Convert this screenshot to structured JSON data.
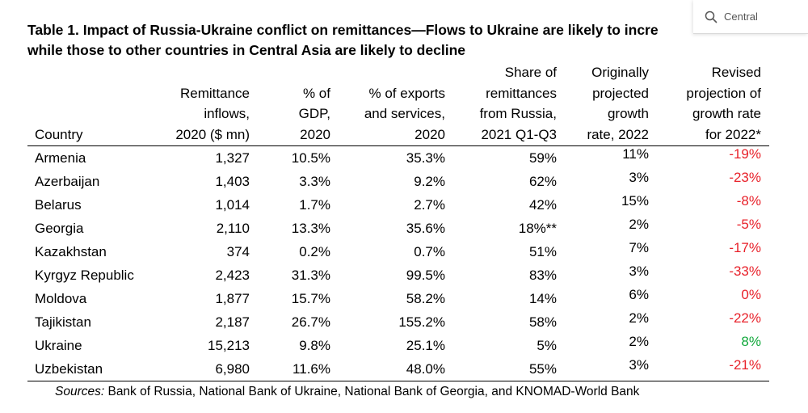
{
  "search": {
    "value": "Central"
  },
  "title": {
    "line1": "Table 1. Impact of Russia-Ukraine conflict on remittances—Flows to Ukraine are likely to incre",
    "line2": "while those to other countries in Central Asia are likely to decline"
  },
  "table": {
    "headers": [
      "Country",
      "Remittance\ninflows,\n2020 ($ mn)",
      "% of\nGDP,\n2020",
      "% of exports\nand services,\n2020",
      "Share of\nremittances\nfrom Russia,\n2021 Q1-Q3",
      "Originally\nprojected\ngrowth\nrate, 2022",
      "Revised\nprojection of\ngrowth rate\nfor 2022*"
    ],
    "rows": [
      {
        "country": "Armenia",
        "remittance": "1,327",
        "gdp": "10.5%",
        "exports": "35.3%",
        "share_russia": "59%",
        "original": "11%",
        "revised": "-19%",
        "revised_sign": "neg"
      },
      {
        "country": "Azerbaijan",
        "remittance": "1,403",
        "gdp": "3.3%",
        "exports": "9.2%",
        "share_russia": "62%",
        "original": "3%",
        "revised": "-23%",
        "revised_sign": "neg"
      },
      {
        "country": "Belarus",
        "remittance": "1,014",
        "gdp": "1.7%",
        "exports": "2.7%",
        "share_russia": "42%",
        "original": "15%",
        "revised": "-8%",
        "revised_sign": "neg"
      },
      {
        "country": "Georgia",
        "remittance": "2,110",
        "gdp": "13.3%",
        "exports": "35.6%",
        "share_russia": "18%**",
        "original": "2%",
        "revised": "-5%",
        "revised_sign": "neg"
      },
      {
        "country": "Kazakhstan",
        "remittance": "374",
        "gdp": "0.2%",
        "exports": "0.7%",
        "share_russia": "51%",
        "original": "7%",
        "revised": "-17%",
        "revised_sign": "neg"
      },
      {
        "country": "Kyrgyz Republic",
        "remittance": "2,423",
        "gdp": "31.3%",
        "exports": "99.5%",
        "share_russia": "83%",
        "original": "3%",
        "revised": "-33%",
        "revised_sign": "neg"
      },
      {
        "country": "Moldova",
        "remittance": "1,877",
        "gdp": "15.7%",
        "exports": "58.2%",
        "share_russia": "14%",
        "original": "6%",
        "revised": "0%",
        "revised_sign": "neg"
      },
      {
        "country": "Tajikistan",
        "remittance": "2,187",
        "gdp": "26.7%",
        "exports": "155.2%",
        "share_russia": "58%",
        "original": "2%",
        "revised": "-22%",
        "revised_sign": "neg"
      },
      {
        "country": "Ukraine",
        "remittance": "15,213",
        "gdp": "9.8%",
        "exports": "25.1%",
        "share_russia": "5%",
        "original": "2%",
        "revised": "8%",
        "revised_sign": "pos"
      },
      {
        "country": "Uzbekistan",
        "remittance": "6,980",
        "gdp": "11.6%",
        "exports": "48.0%",
        "share_russia": "55%",
        "original": "3%",
        "revised": "-21%",
        "revised_sign": "neg"
      }
    ]
  },
  "sources": {
    "label": "Sources:",
    "text": " Bank of Russia, National Bank of Ukraine, National Bank of Georgia, and KNOMAD-World Bank"
  },
  "colors": {
    "negative": "#e8212a",
    "positive": "#12a83c"
  }
}
